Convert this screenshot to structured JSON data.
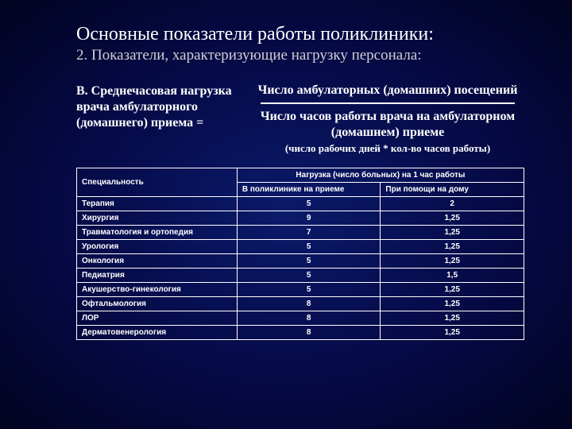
{
  "title": {
    "main": "Основные показатели работы поликлиники:",
    "sub": "2. Показатели, характеризующие нагрузку персонала:"
  },
  "formula": {
    "left": "В. Среднечасовая нагрузка врача амбулаторного (домашнего) приема =",
    "numerator": "Число амбулаторных (домашних) посещений",
    "denominator": "Число часов работы врача на амбулаторном (домашнем) приеме",
    "note": "(число рабочих дней * кол-во часов работы)"
  },
  "table": {
    "header": {
      "specialty": "Специальность",
      "load": "Нагрузка (число больных) на 1 час работы",
      "in_clinic": "В поликлинике на приеме",
      "at_home": "При помощи на дому"
    },
    "rows": [
      {
        "spec": "Терапия",
        "clinic": "5",
        "home": "2"
      },
      {
        "spec": "Хирургия",
        "clinic": "9",
        "home": "1,25"
      },
      {
        "spec": "Травматология и ортопедия",
        "clinic": "7",
        "home": "1,25"
      },
      {
        "spec": "Урология",
        "clinic": "5",
        "home": "1,25"
      },
      {
        "spec": "Онкология",
        "clinic": "5",
        "home": "1,25"
      },
      {
        "spec": "Педиатрия",
        "clinic": "5",
        "home": "1,5"
      },
      {
        "spec": "Акушерство-гинекология",
        "clinic": "5",
        "home": "1,25"
      },
      {
        "spec": "Офтальмология",
        "clinic": "8",
        "home": "1,25"
      },
      {
        "spec": "ЛОР",
        "clinic": "8",
        "home": "1,25"
      },
      {
        "spec": "Дерматовенерология",
        "clinic": "8",
        "home": "1,25"
      }
    ]
  }
}
